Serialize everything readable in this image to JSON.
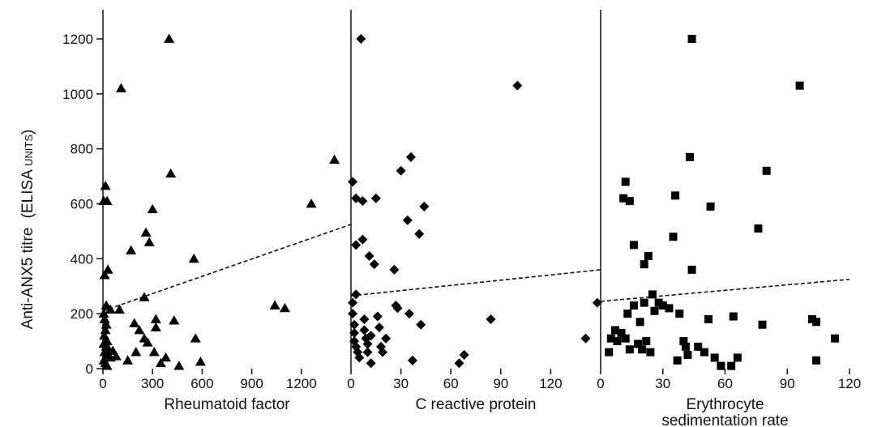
{
  "chart_data": {
    "type": "scatter",
    "ylabel": "Anti-ANX5 titre",
    "ylabel_unit": "(ELISA units)",
    "ylim": [
      0,
      1200
    ],
    "yticks": [
      0,
      200,
      400,
      600,
      800,
      1000,
      1200
    ],
    "grid": false,
    "panels": [
      {
        "xlabel": "Rheumatoid factor",
        "marker": "triangle",
        "xlim": [
          0,
          1500
        ],
        "xticks": [
          0,
          300,
          600,
          900,
          1200
        ],
        "regression": [
          [
            0,
            210
          ],
          [
            1500,
            525
          ]
        ],
        "points": [
          [
            5,
            610
          ],
          [
            15,
            665
          ],
          [
            25,
            610
          ],
          [
            10,
            340
          ],
          [
            30,
            360
          ],
          [
            20,
            230
          ],
          [
            45,
            215
          ],
          [
            5,
            200
          ],
          [
            10,
            180
          ],
          [
            20,
            160
          ],
          [
            15,
            140
          ],
          [
            8,
            120
          ],
          [
            25,
            100
          ],
          [
            5,
            90
          ],
          [
            20,
            80
          ],
          [
            35,
            70
          ],
          [
            10,
            60
          ],
          [
            30,
            50
          ],
          [
            45,
            40
          ],
          [
            5,
            30
          ],
          [
            15,
            20
          ],
          [
            25,
            10
          ],
          [
            60,
            65
          ],
          [
            80,
            45
          ],
          [
            100,
            215
          ],
          [
            110,
            1020
          ],
          [
            170,
            430
          ],
          [
            190,
            165
          ],
          [
            220,
            140
          ],
          [
            150,
            30
          ],
          [
            200,
            60
          ],
          [
            250,
            260
          ],
          [
            260,
            495
          ],
          [
            280,
            460
          ],
          [
            250,
            110
          ],
          [
            270,
            95
          ],
          [
            300,
            580
          ],
          [
            320,
            180
          ],
          [
            320,
            150
          ],
          [
            310,
            60
          ],
          [
            350,
            20
          ],
          [
            380,
            40
          ],
          [
            400,
            1200
          ],
          [
            410,
            710
          ],
          [
            430,
            175
          ],
          [
            460,
            10
          ],
          [
            550,
            400
          ],
          [
            560,
            110
          ],
          [
            590,
            25
          ],
          [
            1040,
            230
          ],
          [
            1100,
            220
          ],
          [
            1260,
            600
          ],
          [
            1400,
            760
          ]
        ]
      },
      {
        "xlabel": "C reactive protein",
        "marker": "diamond",
        "xlim": [
          0,
          150
        ],
        "xticks": [
          0,
          30,
          60,
          90,
          120
        ],
        "regression": [
          [
            0,
            265
          ],
          [
            150,
            360
          ]
        ],
        "points": [
          [
            1,
            680
          ],
          [
            1,
            240
          ],
          [
            1,
            200
          ],
          [
            3,
            620
          ],
          [
            3,
            450
          ],
          [
            3,
            270
          ],
          [
            2,
            160
          ],
          [
            2,
            130
          ],
          [
            2,
            100
          ],
          [
            3,
            80
          ],
          [
            4,
            60
          ],
          [
            5,
            40
          ],
          [
            6,
            1200
          ],
          [
            7,
            610
          ],
          [
            7,
            470
          ],
          [
            8,
            180
          ],
          [
            8,
            140
          ],
          [
            9,
            110
          ],
          [
            10,
            90
          ],
          [
            11,
            410
          ],
          [
            10,
            60
          ],
          [
            12,
            20
          ],
          [
            12,
            120
          ],
          [
            14,
            380
          ],
          [
            15,
            620
          ],
          [
            16,
            190
          ],
          [
            17,
            150
          ],
          [
            18,
            80
          ],
          [
            19,
            60
          ],
          [
            21,
            110
          ],
          [
            26,
            360
          ],
          [
            27,
            230
          ],
          [
            28,
            220
          ],
          [
            30,
            720
          ],
          [
            34,
            540
          ],
          [
            35,
            200
          ],
          [
            36,
            770
          ],
          [
            37,
            30
          ],
          [
            41,
            490
          ],
          [
            42,
            160
          ],
          [
            44,
            590
          ],
          [
            65,
            20
          ],
          [
            68,
            50
          ],
          [
            84,
            180
          ],
          [
            100,
            1030
          ],
          [
            141,
            110
          ],
          [
            148,
            240
          ]
        ]
      },
      {
        "xlabel": "Erythrocyte\nsedimentation rate",
        "marker": "square",
        "xlim": [
          0,
          120
        ],
        "xticks": [
          0,
          30,
          60,
          90,
          120
        ],
        "regression": [
          [
            0,
            245
          ],
          [
            120,
            325
          ]
        ],
        "points": [
          [
            4,
            60
          ],
          [
            5,
            110
          ],
          [
            7,
            140
          ],
          [
            8,
            100
          ],
          [
            10,
            130
          ],
          [
            11,
            620
          ],
          [
            12,
            680
          ],
          [
            12,
            110
          ],
          [
            13,
            200
          ],
          [
            14,
            610
          ],
          [
            14,
            70
          ],
          [
            16,
            450
          ],
          [
            16,
            230
          ],
          [
            18,
            90
          ],
          [
            19,
            170
          ],
          [
            20,
            70
          ],
          [
            21,
            380
          ],
          [
            21,
            240
          ],
          [
            22,
            100
          ],
          [
            23,
            410
          ],
          [
            24,
            60
          ],
          [
            25,
            270
          ],
          [
            26,
            210
          ],
          [
            28,
            240
          ],
          [
            30,
            230
          ],
          [
            33,
            220
          ],
          [
            35,
            480
          ],
          [
            36,
            630
          ],
          [
            37,
            30
          ],
          [
            38,
            200
          ],
          [
            40,
            100
          ],
          [
            41,
            80
          ],
          [
            42,
            50
          ],
          [
            43,
            770
          ],
          [
            44,
            1200
          ],
          [
            44,
            360
          ],
          [
            47,
            80
          ],
          [
            50,
            60
          ],
          [
            52,
            180
          ],
          [
            53,
            590
          ],
          [
            55,
            40
          ],
          [
            58,
            10
          ],
          [
            63,
            10
          ],
          [
            64,
            190
          ],
          [
            66,
            40
          ],
          [
            76,
            510
          ],
          [
            78,
            160
          ],
          [
            80,
            720
          ],
          [
            96,
            1030
          ],
          [
            102,
            180
          ],
          [
            104,
            170
          ],
          [
            104,
            30
          ],
          [
            113,
            110
          ]
        ]
      }
    ]
  }
}
